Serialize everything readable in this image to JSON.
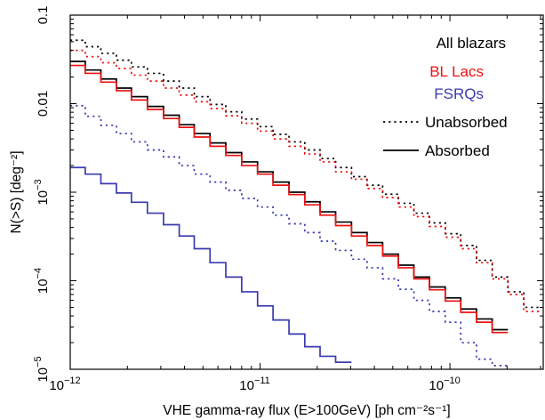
{
  "chart_data": {
    "type": "line",
    "step": true,
    "xlabel": "VHE gamma-ray flux (E>100GeV) [ph cm⁻²s⁻¹]",
    "ylabel": "N(>S) [deg⁻²]",
    "xscale": "log",
    "yscale": "log",
    "xlim": [
      1e-12,
      3.1e-10
    ],
    "ylim": [
      1e-05,
      0.1
    ],
    "x_ticks": [
      {
        "value": 1e-12,
        "base": "10",
        "exp": "−12"
      },
      {
        "value": 1e-11,
        "base": "10",
        "exp": "−11"
      },
      {
        "value": 1e-10,
        "base": "10",
        "exp": "−10"
      }
    ],
    "y_ticks": [
      {
        "value": 1e-05,
        "base": "10",
        "exp": "−5",
        "plain": ""
      },
      {
        "value": 0.0001,
        "base": "10",
        "exp": "−4",
        "plain": ""
      },
      {
        "value": 0.001,
        "base": "10",
        "exp": "−3",
        "plain": ""
      },
      {
        "value": 0.01,
        "base": "",
        "exp": "",
        "plain": "0.01"
      },
      {
        "value": 0.1,
        "base": "",
        "exp": "",
        "plain": "0.1"
      }
    ],
    "grid": false,
    "legend_position": "top-right",
    "bin_edges": [
      1e-12,
      1.2e-12,
      1.45e-12,
      1.75e-12,
      2.1e-12,
      2.55e-12,
      3.1e-12,
      3.75e-12,
      4.5e-12,
      5.45e-12,
      6.6e-12,
      8e-12,
      9.7e-12,
      1.17e-11,
      1.42e-11,
      1.72e-11,
      2.07e-11,
      2.5e-11,
      3.03e-11,
      3.66e-11,
      4.42e-11,
      5.35e-11,
      6.46e-11,
      7.8e-11,
      9.45e-11,
      1.14e-10,
      1.38e-10,
      1.67e-10,
      2.02e-10,
      2.45e-10,
      2.95e-10
    ],
    "series": [
      {
        "name": "All blazars",
        "color": "#000000",
        "unabsorbed": [
          0.052,
          0.044,
          0.037,
          0.031,
          0.026,
          0.022,
          0.018,
          0.015,
          0.012,
          0.0098,
          0.0081,
          0.0067,
          0.0055,
          0.0045,
          0.0037,
          0.003,
          0.0024,
          0.0019,
          0.0015,
          0.0012,
          0.00095,
          0.00075,
          0.00058,
          0.00045,
          0.00034,
          0.00025,
          0.00017,
          0.00011,
          7.5e-05,
          5e-05
        ],
        "absorbed": [
          0.03,
          0.024,
          0.019,
          0.015,
          0.012,
          0.0093,
          0.0074,
          0.0058,
          0.0046,
          0.0036,
          0.0028,
          0.0022,
          0.0017,
          0.0013,
          0.001,
          0.00078,
          0.0006,
          0.00046,
          0.00035,
          0.00027,
          0.0002,
          0.00015,
          0.00011,
          8.5e-05,
          6.4e-05,
          4.8e-05,
          3.7e-05,
          2.8e-05
        ]
      },
      {
        "name": "BL Lacs",
        "color": "#ee1111",
        "unabsorbed": [
          0.04,
          0.034,
          0.029,
          0.025,
          0.021,
          0.018,
          0.015,
          0.0125,
          0.0105,
          0.0088,
          0.0073,
          0.006,
          0.0049,
          0.004,
          0.0033,
          0.0027,
          0.0022,
          0.0017,
          0.0014,
          0.0011,
          0.00087,
          0.00068,
          0.00053,
          0.00041,
          0.00031,
          0.00023,
          0.00016,
          0.000105,
          7e-05,
          4.5e-05
        ],
        "absorbed": [
          0.027,
          0.022,
          0.0175,
          0.014,
          0.011,
          0.0086,
          0.0068,
          0.0054,
          0.0042,
          0.0033,
          0.0026,
          0.002,
          0.0016,
          0.0012,
          0.00094,
          0.00072,
          0.00055,
          0.00042,
          0.00032,
          0.00025,
          0.00019,
          0.00014,
          0.000105,
          7.9e-05,
          5.9e-05,
          4.4e-05,
          3.4e-05,
          2.6e-05
        ]
      },
      {
        "name": "FSRQs",
        "color": "#3a3ab0",
        "unabsorbed": [
          0.0095,
          0.0072,
          0.0057,
          0.0046,
          0.0037,
          0.003,
          0.0025,
          0.002,
          0.0016,
          0.0013,
          0.00105,
          0.00085,
          0.00068,
          0.00055,
          0.00044,
          0.00035,
          0.00028,
          0.00022,
          0.000175,
          0.00014,
          0.000105,
          8e-05,
          6e-05,
          4.5e-05,
          3.4e-05,
          2e-05,
          1.3e-05,
          1.1e-05
        ],
        "absorbed": [
          0.0019,
          0.0016,
          0.00125,
          0.00098,
          0.00077,
          0.00058,
          0.00043,
          0.00032,
          0.00023,
          0.00016,
          0.00011,
          7.5e-05,
          5.2e-05,
          3.6e-05,
          2.5e-05,
          1.8e-05,
          1.4e-05,
          1.2e-05
        ]
      }
    ],
    "legend": {
      "entries": [
        {
          "label": "All blazars",
          "color": "#000000"
        },
        {
          "label": "BL Lacs",
          "color": "#ee1111"
        },
        {
          "label": "FSRQs",
          "color": "#3a3ab0"
        }
      ],
      "line_styles": [
        {
          "label": "Unabsorbed",
          "style": "dotted"
        },
        {
          "label": "Absorbed",
          "style": "solid"
        }
      ]
    }
  }
}
